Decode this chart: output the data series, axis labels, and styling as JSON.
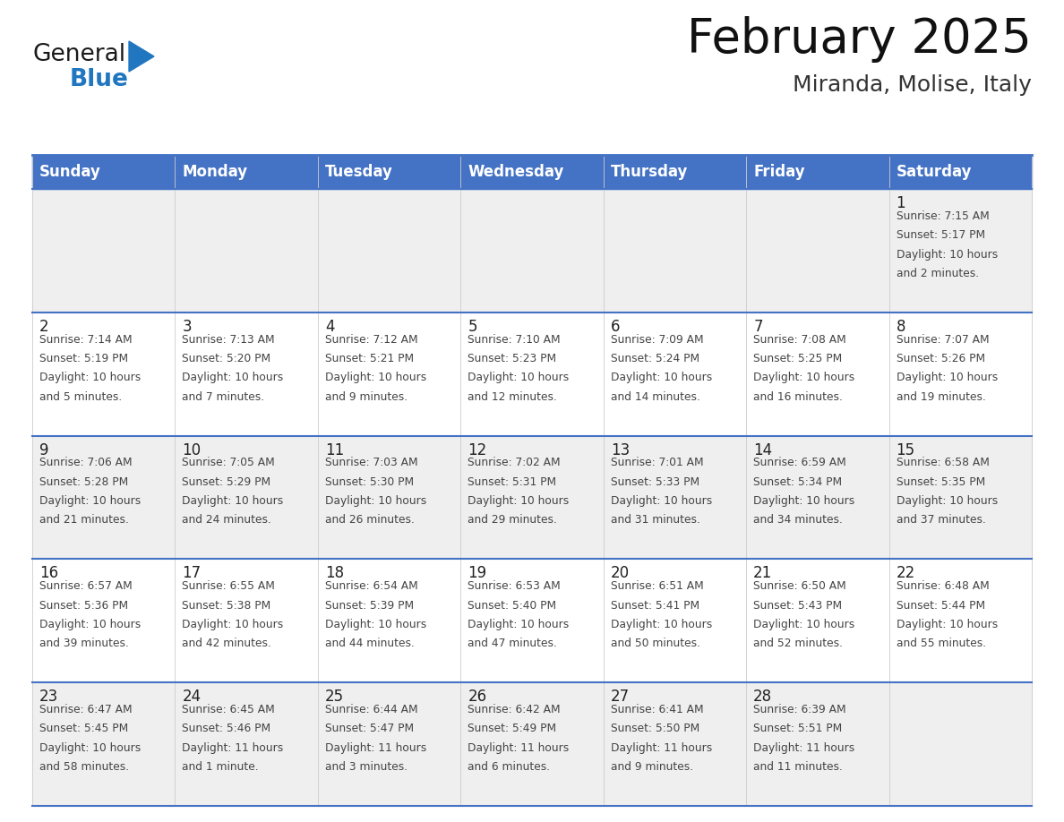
{
  "title": "February 2025",
  "subtitle": "Miranda, Molise, Italy",
  "header_bg": "#4472C4",
  "header_text_color": "#FFFFFF",
  "header_font_size": 12,
  "day_names": [
    "Sunday",
    "Monday",
    "Tuesday",
    "Wednesday",
    "Thursday",
    "Friday",
    "Saturday"
  ],
  "title_font_size": 38,
  "subtitle_font_size": 18,
  "cell_text_color": "#444444",
  "day_number_color": "#222222",
  "row_bg_even": "#efefef",
  "row_bg_odd": "#ffffff",
  "border_color": "#4472C4",
  "grid_line_color": "#cccccc",
  "days": [
    {
      "day": 1,
      "col": 6,
      "row": 0,
      "sunrise": "7:15 AM",
      "sunset": "5:17 PM",
      "daylight_h": "10 hours",
      "daylight_m": "and 2 minutes."
    },
    {
      "day": 2,
      "col": 0,
      "row": 1,
      "sunrise": "7:14 AM",
      "sunset": "5:19 PM",
      "daylight_h": "10 hours",
      "daylight_m": "and 5 minutes."
    },
    {
      "day": 3,
      "col": 1,
      "row": 1,
      "sunrise": "7:13 AM",
      "sunset": "5:20 PM",
      "daylight_h": "10 hours",
      "daylight_m": "and 7 minutes."
    },
    {
      "day": 4,
      "col": 2,
      "row": 1,
      "sunrise": "7:12 AM",
      "sunset": "5:21 PM",
      "daylight_h": "10 hours",
      "daylight_m": "and 9 minutes."
    },
    {
      "day": 5,
      "col": 3,
      "row": 1,
      "sunrise": "7:10 AM",
      "sunset": "5:23 PM",
      "daylight_h": "10 hours",
      "daylight_m": "and 12 minutes."
    },
    {
      "day": 6,
      "col": 4,
      "row": 1,
      "sunrise": "7:09 AM",
      "sunset": "5:24 PM",
      "daylight_h": "10 hours",
      "daylight_m": "and 14 minutes."
    },
    {
      "day": 7,
      "col": 5,
      "row": 1,
      "sunrise": "7:08 AM",
      "sunset": "5:25 PM",
      "daylight_h": "10 hours",
      "daylight_m": "and 16 minutes."
    },
    {
      "day": 8,
      "col": 6,
      "row": 1,
      "sunrise": "7:07 AM",
      "sunset": "5:26 PM",
      "daylight_h": "10 hours",
      "daylight_m": "and 19 minutes."
    },
    {
      "day": 9,
      "col": 0,
      "row": 2,
      "sunrise": "7:06 AM",
      "sunset": "5:28 PM",
      "daylight_h": "10 hours",
      "daylight_m": "and 21 minutes."
    },
    {
      "day": 10,
      "col": 1,
      "row": 2,
      "sunrise": "7:05 AM",
      "sunset": "5:29 PM",
      "daylight_h": "10 hours",
      "daylight_m": "and 24 minutes."
    },
    {
      "day": 11,
      "col": 2,
      "row": 2,
      "sunrise": "7:03 AM",
      "sunset": "5:30 PM",
      "daylight_h": "10 hours",
      "daylight_m": "and 26 minutes."
    },
    {
      "day": 12,
      "col": 3,
      "row": 2,
      "sunrise": "7:02 AM",
      "sunset": "5:31 PM",
      "daylight_h": "10 hours",
      "daylight_m": "and 29 minutes."
    },
    {
      "day": 13,
      "col": 4,
      "row": 2,
      "sunrise": "7:01 AM",
      "sunset": "5:33 PM",
      "daylight_h": "10 hours",
      "daylight_m": "and 31 minutes."
    },
    {
      "day": 14,
      "col": 5,
      "row": 2,
      "sunrise": "6:59 AM",
      "sunset": "5:34 PM",
      "daylight_h": "10 hours",
      "daylight_m": "and 34 minutes."
    },
    {
      "day": 15,
      "col": 6,
      "row": 2,
      "sunrise": "6:58 AM",
      "sunset": "5:35 PM",
      "daylight_h": "10 hours",
      "daylight_m": "and 37 minutes."
    },
    {
      "day": 16,
      "col": 0,
      "row": 3,
      "sunrise": "6:57 AM",
      "sunset": "5:36 PM",
      "daylight_h": "10 hours",
      "daylight_m": "and 39 minutes."
    },
    {
      "day": 17,
      "col": 1,
      "row": 3,
      "sunrise": "6:55 AM",
      "sunset": "5:38 PM",
      "daylight_h": "10 hours",
      "daylight_m": "and 42 minutes."
    },
    {
      "day": 18,
      "col": 2,
      "row": 3,
      "sunrise": "6:54 AM",
      "sunset": "5:39 PM",
      "daylight_h": "10 hours",
      "daylight_m": "and 44 minutes."
    },
    {
      "day": 19,
      "col": 3,
      "row": 3,
      "sunrise": "6:53 AM",
      "sunset": "5:40 PM",
      "daylight_h": "10 hours",
      "daylight_m": "and 47 minutes."
    },
    {
      "day": 20,
      "col": 4,
      "row": 3,
      "sunrise": "6:51 AM",
      "sunset": "5:41 PM",
      "daylight_h": "10 hours",
      "daylight_m": "and 50 minutes."
    },
    {
      "day": 21,
      "col": 5,
      "row": 3,
      "sunrise": "6:50 AM",
      "sunset": "5:43 PM",
      "daylight_h": "10 hours",
      "daylight_m": "and 52 minutes."
    },
    {
      "day": 22,
      "col": 6,
      "row": 3,
      "sunrise": "6:48 AM",
      "sunset": "5:44 PM",
      "daylight_h": "10 hours",
      "daylight_m": "and 55 minutes."
    },
    {
      "day": 23,
      "col": 0,
      "row": 4,
      "sunrise": "6:47 AM",
      "sunset": "5:45 PM",
      "daylight_h": "10 hours",
      "daylight_m": "and 58 minutes."
    },
    {
      "day": 24,
      "col": 1,
      "row": 4,
      "sunrise": "6:45 AM",
      "sunset": "5:46 PM",
      "daylight_h": "11 hours",
      "daylight_m": "and 1 minute."
    },
    {
      "day": 25,
      "col": 2,
      "row": 4,
      "sunrise": "6:44 AM",
      "sunset": "5:47 PM",
      "daylight_h": "11 hours",
      "daylight_m": "and 3 minutes."
    },
    {
      "day": 26,
      "col": 3,
      "row": 4,
      "sunrise": "6:42 AM",
      "sunset": "5:49 PM",
      "daylight_h": "11 hours",
      "daylight_m": "and 6 minutes."
    },
    {
      "day": 27,
      "col": 4,
      "row": 4,
      "sunrise": "6:41 AM",
      "sunset": "5:50 PM",
      "daylight_h": "11 hours",
      "daylight_m": "and 9 minutes."
    },
    {
      "day": 28,
      "col": 5,
      "row": 4,
      "sunrise": "6:39 AM",
      "sunset": "5:51 PM",
      "daylight_h": "11 hours",
      "daylight_m": "and 11 minutes."
    }
  ],
  "logo_color_general": "#1a1a1a",
  "logo_color_blue": "#2176c0",
  "logo_triangle_color": "#2176c0",
  "fig_width": 11.88,
  "fig_height": 9.18,
  "dpi": 100
}
